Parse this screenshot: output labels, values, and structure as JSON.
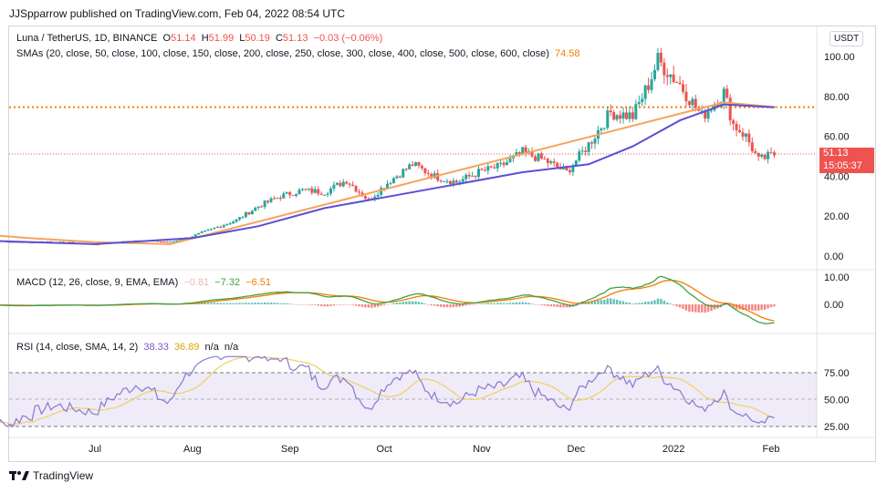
{
  "header": {
    "text": "JJSpparrow published on TradingView.com, Feb 04, 2022 08:54 UTC"
  },
  "footer": {
    "logo_icon": "tradingview-logo-icon",
    "label": "TradingView"
  },
  "currency_button": "USDT",
  "colors": {
    "up": "#26a69a",
    "down": "#ef5350",
    "sma_fast": "#5b4fd6",
    "sma_slow": "#f7a35c",
    "hline": "#f57c00",
    "rsi": "#8878d0",
    "rsi_ma": "#f0d060",
    "macd": "#43a047",
    "signal": "#f57c00"
  },
  "legend": {
    "main": {
      "symbol": "Luna / TetherUS, 1D, BINANCE",
      "o_label": "O",
      "o": "51.14",
      "h_label": "H",
      "h": "51.99",
      "l_label": "L",
      "l": "50.19",
      "c_label": "C",
      "c": "51.13",
      "change": "−0.03 (−0.06%)"
    },
    "sma": {
      "label": "SMAs (20, close, 50, close, 100, close, 150, close, 200, close, 250, close, 300, close, 400, close, 500, close, 600, close)",
      "value": "74.58"
    },
    "macd": {
      "label": "MACD (12, 26, close, 9, EMA, EMA)",
      "hist": "−0.81",
      "macd": "−7.32",
      "signal": "−6.51"
    },
    "rsi": {
      "label": "RSI (14, close, SMA, 14, 2)",
      "rsi": "38.33",
      "ma": "36.89",
      "na1": "n/a",
      "na2": "n/a"
    }
  },
  "price_box": {
    "price": "51.13",
    "countdown": "15:05:37"
  },
  "chart_data": [
    {
      "type": "candlestick",
      "title": "Luna / TetherUS, 1D, BINANCE",
      "x_ticks": [
        "Jul",
        "Aug",
        "Sep",
        "Oct",
        "Nov",
        "Dec",
        "2022",
        "Feb"
      ],
      "y_ticks": [
        "0.00",
        "20.00",
        "40.00",
        "60.00",
        "80.00",
        "100.00"
      ],
      "ylim": [
        -5,
        105
      ],
      "horizontal_line": 74.58,
      "last_price": 51.13,
      "close_series": [
        [
          "May 21",
          9
        ],
        [
          "Jun 5",
          7
        ],
        [
          "Jun 20",
          7
        ],
        [
          "Jul 1",
          6
        ],
        [
          "Jul 15",
          8
        ],
        [
          "Jul 25",
          7
        ],
        [
          "Aug 1",
          10
        ],
        [
          "Aug 8",
          14
        ],
        [
          "Aug 15",
          18
        ],
        [
          "Aug 22",
          25
        ],
        [
          "Aug 29",
          30
        ],
        [
          "Sep 5",
          33
        ],
        [
          "Sep 12",
          32
        ],
        [
          "Sep 19",
          38
        ],
        [
          "Sep 26",
          28
        ],
        [
          "Oct 3",
          38
        ],
        [
          "Oct 10",
          46
        ],
        [
          "Oct 17",
          40
        ],
        [
          "Oct 24",
          37
        ],
        [
          "Oct 31",
          42
        ],
        [
          "Nov 7",
          45
        ],
        [
          "Nov 14",
          52
        ],
        [
          "Nov 21",
          48
        ],
        [
          "Nov 28",
          42
        ],
        [
          "Dec 5",
          56
        ],
        [
          "Dec 12",
          72
        ],
        [
          "Dec 19",
          70
        ],
        [
          "Dec 24",
          86
        ],
        [
          "Dec 27",
          98
        ],
        [
          "Jan 3",
          86
        ],
        [
          "Jan 10",
          70
        ],
        [
          "Jan 17",
          82
        ],
        [
          "Jan 20",
          66
        ],
        [
          "Jan 24",
          60
        ],
        [
          "Jan 28",
          48
        ],
        [
          "Feb 2",
          51
        ]
      ],
      "sma_fast": [
        [
          "May 21",
          8
        ],
        [
          "Jul 1",
          6
        ],
        [
          "Aug 1",
          9
        ],
        [
          "Aug 22",
          15
        ],
        [
          "Sep 12",
          24
        ],
        [
          "Oct 3",
          30
        ],
        [
          "Oct 24",
          36
        ],
        [
          "Nov 14",
          42
        ],
        [
          "Dec 5",
          46
        ],
        [
          "Dec 19",
          55
        ],
        [
          "Jan 3",
          68
        ],
        [
          "Jan 17",
          76
        ],
        [
          "Feb 2",
          74.58
        ]
      ],
      "sma_slow": [
        [
          "May 10",
          13
        ],
        [
          "Jun 10",
          9
        ],
        [
          "Jul 1",
          7
        ],
        [
          "Jul 25",
          6
        ],
        [
          "Jan 17",
          77
        ],
        [
          "Feb 3",
          74.58
        ]
      ]
    },
    {
      "type": "macd",
      "title": "MACD (12, 26, close, 9, EMA, EMA)",
      "y_ticks": [
        "10.00",
        "0.00"
      ],
      "ylim": [
        -10,
        12
      ],
      "values": {
        "histogram": -0.81,
        "macd": -7.32,
        "signal": -6.51
      }
    },
    {
      "type": "rsi",
      "title": "RSI (14, close, SMA, 14, 2)",
      "y_ticks": [
        "75.00",
        "50.00",
        "25.00"
      ],
      "ylim": [
        25,
        90
      ],
      "values": {
        "rsi": 38.33,
        "rsi_ma": 36.89
      }
    }
  ]
}
